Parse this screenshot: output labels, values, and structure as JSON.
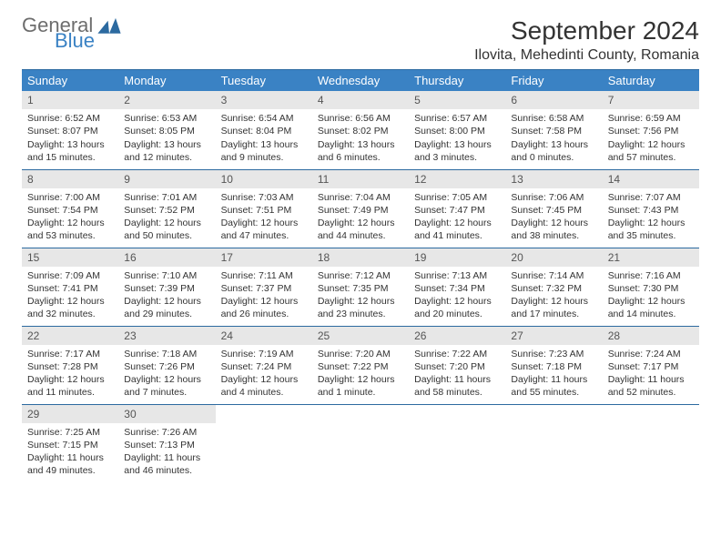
{
  "brand": {
    "general": "General",
    "blue": "Blue",
    "mark_color": "#2c6aa0"
  },
  "title": "September 2024",
  "location": "Ilovita, Mehedinti County, Romania",
  "day_headers": [
    "Sunday",
    "Monday",
    "Tuesday",
    "Wednesday",
    "Thursday",
    "Friday",
    "Saturday"
  ],
  "colors": {
    "header_bg": "#3a82c4",
    "header_text": "#ffffff",
    "daynum_bg": "#e7e7e7",
    "border": "#2c6aa0",
    "text": "#333333"
  },
  "weeks": [
    [
      {
        "n": "1",
        "sr": "Sunrise: 6:52 AM",
        "ss": "Sunset: 8:07 PM",
        "d1": "Daylight: 13 hours",
        "d2": "and 15 minutes."
      },
      {
        "n": "2",
        "sr": "Sunrise: 6:53 AM",
        "ss": "Sunset: 8:05 PM",
        "d1": "Daylight: 13 hours",
        "d2": "and 12 minutes."
      },
      {
        "n": "3",
        "sr": "Sunrise: 6:54 AM",
        "ss": "Sunset: 8:04 PM",
        "d1": "Daylight: 13 hours",
        "d2": "and 9 minutes."
      },
      {
        "n": "4",
        "sr": "Sunrise: 6:56 AM",
        "ss": "Sunset: 8:02 PM",
        "d1": "Daylight: 13 hours",
        "d2": "and 6 minutes."
      },
      {
        "n": "5",
        "sr": "Sunrise: 6:57 AM",
        "ss": "Sunset: 8:00 PM",
        "d1": "Daylight: 13 hours",
        "d2": "and 3 minutes."
      },
      {
        "n": "6",
        "sr": "Sunrise: 6:58 AM",
        "ss": "Sunset: 7:58 PM",
        "d1": "Daylight: 13 hours",
        "d2": "and 0 minutes."
      },
      {
        "n": "7",
        "sr": "Sunrise: 6:59 AM",
        "ss": "Sunset: 7:56 PM",
        "d1": "Daylight: 12 hours",
        "d2": "and 57 minutes."
      }
    ],
    [
      {
        "n": "8",
        "sr": "Sunrise: 7:00 AM",
        "ss": "Sunset: 7:54 PM",
        "d1": "Daylight: 12 hours",
        "d2": "and 53 minutes."
      },
      {
        "n": "9",
        "sr": "Sunrise: 7:01 AM",
        "ss": "Sunset: 7:52 PM",
        "d1": "Daylight: 12 hours",
        "d2": "and 50 minutes."
      },
      {
        "n": "10",
        "sr": "Sunrise: 7:03 AM",
        "ss": "Sunset: 7:51 PM",
        "d1": "Daylight: 12 hours",
        "d2": "and 47 minutes."
      },
      {
        "n": "11",
        "sr": "Sunrise: 7:04 AM",
        "ss": "Sunset: 7:49 PM",
        "d1": "Daylight: 12 hours",
        "d2": "and 44 minutes."
      },
      {
        "n": "12",
        "sr": "Sunrise: 7:05 AM",
        "ss": "Sunset: 7:47 PM",
        "d1": "Daylight: 12 hours",
        "d2": "and 41 minutes."
      },
      {
        "n": "13",
        "sr": "Sunrise: 7:06 AM",
        "ss": "Sunset: 7:45 PM",
        "d1": "Daylight: 12 hours",
        "d2": "and 38 minutes."
      },
      {
        "n": "14",
        "sr": "Sunrise: 7:07 AM",
        "ss": "Sunset: 7:43 PM",
        "d1": "Daylight: 12 hours",
        "d2": "and 35 minutes."
      }
    ],
    [
      {
        "n": "15",
        "sr": "Sunrise: 7:09 AM",
        "ss": "Sunset: 7:41 PM",
        "d1": "Daylight: 12 hours",
        "d2": "and 32 minutes."
      },
      {
        "n": "16",
        "sr": "Sunrise: 7:10 AM",
        "ss": "Sunset: 7:39 PM",
        "d1": "Daylight: 12 hours",
        "d2": "and 29 minutes."
      },
      {
        "n": "17",
        "sr": "Sunrise: 7:11 AM",
        "ss": "Sunset: 7:37 PM",
        "d1": "Daylight: 12 hours",
        "d2": "and 26 minutes."
      },
      {
        "n": "18",
        "sr": "Sunrise: 7:12 AM",
        "ss": "Sunset: 7:35 PM",
        "d1": "Daylight: 12 hours",
        "d2": "and 23 minutes."
      },
      {
        "n": "19",
        "sr": "Sunrise: 7:13 AM",
        "ss": "Sunset: 7:34 PM",
        "d1": "Daylight: 12 hours",
        "d2": "and 20 minutes."
      },
      {
        "n": "20",
        "sr": "Sunrise: 7:14 AM",
        "ss": "Sunset: 7:32 PM",
        "d1": "Daylight: 12 hours",
        "d2": "and 17 minutes."
      },
      {
        "n": "21",
        "sr": "Sunrise: 7:16 AM",
        "ss": "Sunset: 7:30 PM",
        "d1": "Daylight: 12 hours",
        "d2": "and 14 minutes."
      }
    ],
    [
      {
        "n": "22",
        "sr": "Sunrise: 7:17 AM",
        "ss": "Sunset: 7:28 PM",
        "d1": "Daylight: 12 hours",
        "d2": "and 11 minutes."
      },
      {
        "n": "23",
        "sr": "Sunrise: 7:18 AM",
        "ss": "Sunset: 7:26 PM",
        "d1": "Daylight: 12 hours",
        "d2": "and 7 minutes."
      },
      {
        "n": "24",
        "sr": "Sunrise: 7:19 AM",
        "ss": "Sunset: 7:24 PM",
        "d1": "Daylight: 12 hours",
        "d2": "and 4 minutes."
      },
      {
        "n": "25",
        "sr": "Sunrise: 7:20 AM",
        "ss": "Sunset: 7:22 PM",
        "d1": "Daylight: 12 hours",
        "d2": "and 1 minute."
      },
      {
        "n": "26",
        "sr": "Sunrise: 7:22 AM",
        "ss": "Sunset: 7:20 PM",
        "d1": "Daylight: 11 hours",
        "d2": "and 58 minutes."
      },
      {
        "n": "27",
        "sr": "Sunrise: 7:23 AM",
        "ss": "Sunset: 7:18 PM",
        "d1": "Daylight: 11 hours",
        "d2": "and 55 minutes."
      },
      {
        "n": "28",
        "sr": "Sunrise: 7:24 AM",
        "ss": "Sunset: 7:17 PM",
        "d1": "Daylight: 11 hours",
        "d2": "and 52 minutes."
      }
    ],
    [
      {
        "n": "29",
        "sr": "Sunrise: 7:25 AM",
        "ss": "Sunset: 7:15 PM",
        "d1": "Daylight: 11 hours",
        "d2": "and 49 minutes."
      },
      {
        "n": "30",
        "sr": "Sunrise: 7:26 AM",
        "ss": "Sunset: 7:13 PM",
        "d1": "Daylight: 11 hours",
        "d2": "and 46 minutes."
      },
      {
        "empty": true
      },
      {
        "empty": true
      },
      {
        "empty": true
      },
      {
        "empty": true
      },
      {
        "empty": true
      }
    ]
  ]
}
